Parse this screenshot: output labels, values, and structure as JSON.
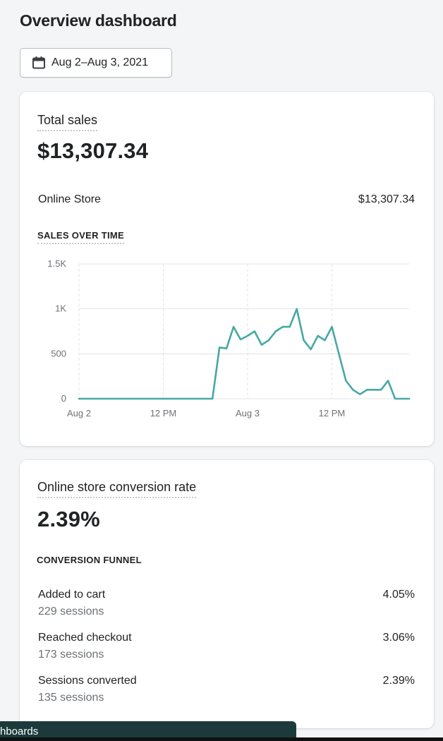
{
  "page": {
    "title": "Overview dashboard"
  },
  "date_range": {
    "label": "Aug 2–Aug 3, 2021",
    "icon": "calendar-icon"
  },
  "sales_card": {
    "title": "Total sales",
    "total": "$13,307.34",
    "breakdown": [
      {
        "label": "Online Store",
        "value": "$13,307.34"
      }
    ],
    "chart_label": "SALES OVER TIME"
  },
  "chart_data": {
    "type": "line",
    "title": "SALES OVER TIME",
    "xlabel": "",
    "ylabel": "",
    "ylim": [
      0,
      1500
    ],
    "y_ticks": [
      {
        "value": 0,
        "label": "0"
      },
      {
        "value": 500,
        "label": "500"
      },
      {
        "value": 1000,
        "label": "1K"
      },
      {
        "value": 1500,
        "label": "1.5K"
      }
    ],
    "x_ticks": [
      {
        "hour": 0,
        "label": "Aug 2"
      },
      {
        "hour": 12,
        "label": "12 PM"
      },
      {
        "hour": 24,
        "label": "Aug 3"
      },
      {
        "hour": 36,
        "label": "12 PM"
      }
    ],
    "xlim": [
      0,
      47
    ],
    "grid": true,
    "line_color": "#47a8a5",
    "series": [
      {
        "x": [
          0,
          1,
          2,
          3,
          4,
          5,
          6,
          7,
          8,
          9,
          10,
          11,
          12,
          13,
          14,
          15,
          16,
          17,
          18,
          19,
          20,
          21,
          22,
          23,
          24,
          25,
          26,
          27,
          28,
          29,
          30,
          31,
          32,
          33,
          34,
          35,
          36,
          37,
          38,
          39,
          40,
          41,
          42,
          43,
          44,
          45,
          46,
          47
        ],
        "values": [
          0,
          0,
          0,
          0,
          0,
          0,
          0,
          0,
          0,
          0,
          0,
          0,
          0,
          0,
          0,
          0,
          0,
          0,
          0,
          0,
          570,
          560,
          800,
          660,
          700,
          750,
          600,
          650,
          750,
          800,
          800,
          1000,
          650,
          550,
          700,
          650,
          800,
          500,
          200,
          100,
          50,
          100,
          100,
          100,
          200,
          0,
          0,
          0
        ]
      }
    ]
  },
  "conversion_card": {
    "title": "Online store conversion rate",
    "rate": "2.39%",
    "funnel_label": "CONVERSION FUNNEL",
    "funnel": [
      {
        "label": "Added to cart",
        "percent": "4.05%",
        "sessions": "229 sessions"
      },
      {
        "label": "Reached checkout",
        "percent": "3.06%",
        "sessions": "173 sessions"
      },
      {
        "label": "Sessions converted",
        "percent": "2.39%",
        "sessions": "135 sessions"
      }
    ]
  },
  "bottom_bar": {
    "text": "hboards"
  }
}
